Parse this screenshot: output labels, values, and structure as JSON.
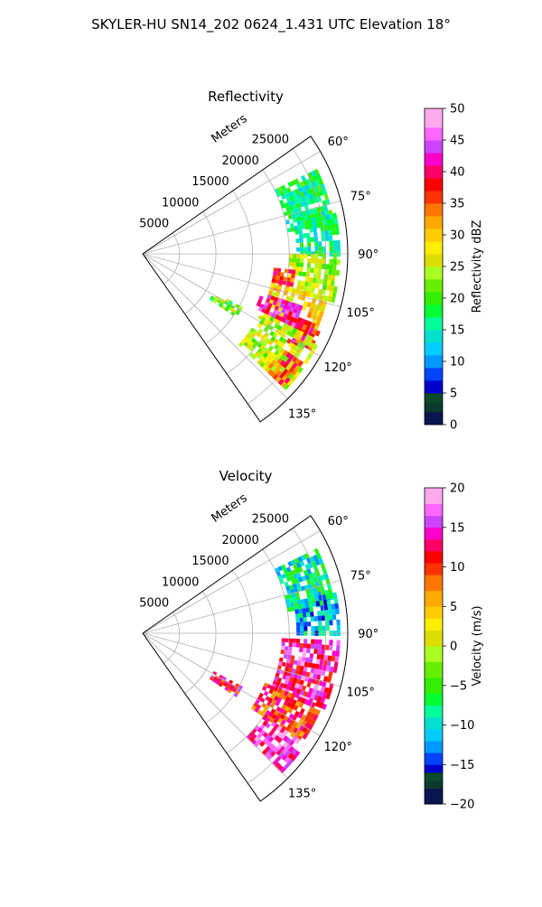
{
  "suptitle": "SKYLER-HU  SN14_202  0624_1.431 UTC Elevation 18°",
  "chart_data": [
    {
      "type": "heatmap",
      "subtype": "polar-sector (PPI)",
      "title": "Reflectivity",
      "range_label": "Meters",
      "range_ticks": [
        5000,
        10000,
        15000,
        20000,
        25000
      ],
      "range_tick_labels": [
        "5000",
        "10000",
        "15000",
        "20000",
        "25000"
      ],
      "rmax": 28000,
      "azimuth_ticks": [
        60,
        75,
        90,
        105,
        120,
        135
      ],
      "azimuth_tick_labels": [
        "60°",
        "75°",
        "90°",
        "105°",
        "120°",
        "135°"
      ],
      "azimuth_range": [
        55,
        145
      ],
      "grid": true,
      "colorbar": {
        "label": "Reflectivity dBZ",
        "min": 0,
        "max": 50,
        "ticks": [
          0,
          5,
          10,
          15,
          20,
          25,
          30,
          35,
          40,
          45,
          50
        ],
        "tick_labels": [
          "0",
          "5",
          "10",
          "15",
          "20",
          "25",
          "30",
          "35",
          "40",
          "45",
          "50"
        ],
        "stops": [
          [
            0,
            "#0a1550"
          ],
          [
            2,
            "#0a3a2a"
          ],
          [
            3.5,
            "#0a4a2a"
          ],
          [
            5,
            "#0000cc"
          ],
          [
            7,
            "#0044ff"
          ],
          [
            9,
            "#0099ff"
          ],
          [
            11,
            "#00ccff"
          ],
          [
            13,
            "#00e0d0"
          ],
          [
            15,
            "#00ff99"
          ],
          [
            17,
            "#00ff33"
          ],
          [
            19,
            "#33ee00"
          ],
          [
            21,
            "#66ee00"
          ],
          [
            23,
            "#aaff22"
          ],
          [
            25,
            "#dddd00"
          ],
          [
            27,
            "#ffee00"
          ],
          [
            29,
            "#ffcc00"
          ],
          [
            31,
            "#ffaa00"
          ],
          [
            33,
            "#ff7700"
          ],
          [
            35,
            "#ff3300"
          ],
          [
            37,
            "#ff0000"
          ],
          [
            39,
            "#ff0066"
          ],
          [
            41,
            "#ff00cc"
          ],
          [
            43,
            "#cc44ff"
          ],
          [
            45,
            "#ff66ff"
          ],
          [
            47,
            "#ffaaee"
          ],
          [
            50,
            "#ffeeff"
          ]
        ]
      },
      "echo_regions": [
        {
          "az": [
            64,
            80
          ],
          "r": [
            20000,
            26500
          ],
          "value": 17
        },
        {
          "az": [
            78,
            90
          ],
          "r": [
            21000,
            27000
          ],
          "value": 16
        },
        {
          "az": [
            90,
            103
          ],
          "r": [
            20000,
            27000
          ],
          "value": 24
        },
        {
          "az": [
            96,
            104
          ],
          "r": [
            18000,
            21000
          ],
          "value": 37
        },
        {
          "az": [
            103,
            116
          ],
          "r": [
            18000,
            26000
          ],
          "value": 29
        },
        {
          "az": [
            108,
            115
          ],
          "r": [
            17000,
            23000
          ],
          "value": 42
        },
        {
          "az": [
            112,
            120
          ],
          "r": [
            23000,
            26500
          ],
          "value": 38
        },
        {
          "az": [
            116,
            132
          ],
          "r": [
            18000,
            27000
          ],
          "value": 25
        },
        {
          "az": [
            124,
            132
          ],
          "r": [
            23000,
            26500
          ],
          "value": 36
        },
        {
          "az": [
            118,
            124
          ],
          "r": [
            11000,
            15500
          ],
          "value": 21
        }
      ]
    },
    {
      "type": "heatmap",
      "subtype": "polar-sector (PPI)",
      "title": "Velocity",
      "range_label": "Meters",
      "range_ticks": [
        5000,
        10000,
        15000,
        20000,
        25000
      ],
      "range_tick_labels": [
        "5000",
        "10000",
        "15000",
        "20000",
        "25000"
      ],
      "rmax": 28000,
      "azimuth_ticks": [
        60,
        75,
        90,
        105,
        120,
        135
      ],
      "azimuth_tick_labels": [
        "60°",
        "75°",
        "90°",
        "105°",
        "120°",
        "135°"
      ],
      "azimuth_range": [
        55,
        145
      ],
      "grid": true,
      "colorbar": {
        "label": "Velocity (m/s)",
        "min": -20,
        "max": 20,
        "ticks": [
          -20,
          -15,
          -10,
          -5,
          0,
          5,
          10,
          15,
          20
        ],
        "tick_labels": [
          "−20",
          "−15",
          "−10",
          "−5",
          "0",
          "5",
          "10",
          "15",
          "20"
        ],
        "stops": [
          [
            -20,
            "#0a1550"
          ],
          [
            -18,
            "#0a3a2a"
          ],
          [
            -17,
            "#0a4a2a"
          ],
          [
            -16,
            "#0000cc"
          ],
          [
            -15,
            "#0044ff"
          ],
          [
            -13.5,
            "#0099ff"
          ],
          [
            -12,
            "#00ccff"
          ],
          [
            -10.5,
            "#00e0d0"
          ],
          [
            -9,
            "#00ff99"
          ],
          [
            -7.5,
            "#00ff33"
          ],
          [
            -6,
            "#33ee00"
          ],
          [
            -4,
            "#66ee00"
          ],
          [
            -2,
            "#aaff22"
          ],
          [
            0,
            "#dddd00"
          ],
          [
            2,
            "#ffee00"
          ],
          [
            3.5,
            "#ffcc00"
          ],
          [
            5,
            "#ffaa00"
          ],
          [
            7,
            "#ff7700"
          ],
          [
            9,
            "#ff3300"
          ],
          [
            10.5,
            "#ff0000"
          ],
          [
            12,
            "#ff0066"
          ],
          [
            13.5,
            "#ff00cc"
          ],
          [
            15,
            "#cc44ff"
          ],
          [
            16.5,
            "#ff66ff"
          ],
          [
            18,
            "#ffaaee"
          ],
          [
            20,
            "#ffeeff"
          ]
        ]
      },
      "echo_regions": [
        {
          "az": [
            64,
            80
          ],
          "r": [
            20000,
            26500
          ],
          "value": -9
        },
        {
          "az": [
            78,
            90
          ],
          "r": [
            21000,
            27000
          ],
          "value": -11
        },
        {
          "az": [
            92,
            112
          ],
          "r": [
            19000,
            27000
          ],
          "value": 14
        },
        {
          "az": [
            112,
            124
          ],
          "r": [
            18000,
            26500
          ],
          "value": 10
        },
        {
          "az": [
            124,
            134
          ],
          "r": [
            20000,
            27000
          ],
          "value": 16
        },
        {
          "az": [
            118,
            124
          ],
          "r": [
            11000,
            15500
          ],
          "value": 12
        }
      ]
    }
  ]
}
